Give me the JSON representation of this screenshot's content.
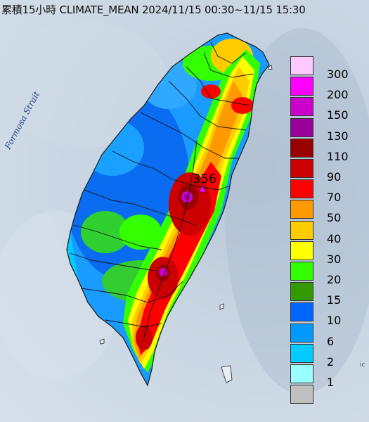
{
  "title": "累積15小時 CLIMATE_MEAN 2024/11/15 00:30~11/15 15:30",
  "strait_label": "Formosa Strait",
  "peak_value": "356",
  "corner_mark": "ic",
  "legend": [
    {
      "label": "300",
      "color": "#ffc8ff"
    },
    {
      "label": "200",
      "color": "#ff00ff"
    },
    {
      "label": "150",
      "color": "#cc00cc"
    },
    {
      "label": "130",
      "color": "#990099"
    },
    {
      "label": "110",
      "color": "#990000"
    },
    {
      "label": "90",
      "color": "#cc0000"
    },
    {
      "label": "70",
      "color": "#ff0000"
    },
    {
      "label": "50",
      "color": "#ff9900"
    },
    {
      "label": "40",
      "color": "#ffcc00"
    },
    {
      "label": "30",
      "color": "#ffff00"
    },
    {
      "label": "20",
      "color": "#33ff00"
    },
    {
      "label": "15",
      "color": "#339900"
    },
    {
      "label": "10",
      "color": "#0066ff"
    },
    {
      "label": "6",
      "color": "#0099ff"
    },
    {
      "label": "2",
      "color": "#00ccff"
    },
    {
      "label": "1",
      "color": "#99ffff"
    },
    {
      "label": "",
      "color": "#c0c0c0"
    }
  ],
  "colors": {
    "sea": "#c8d5e2",
    "land_outline": "#222222",
    "county_lines": "#111111"
  }
}
